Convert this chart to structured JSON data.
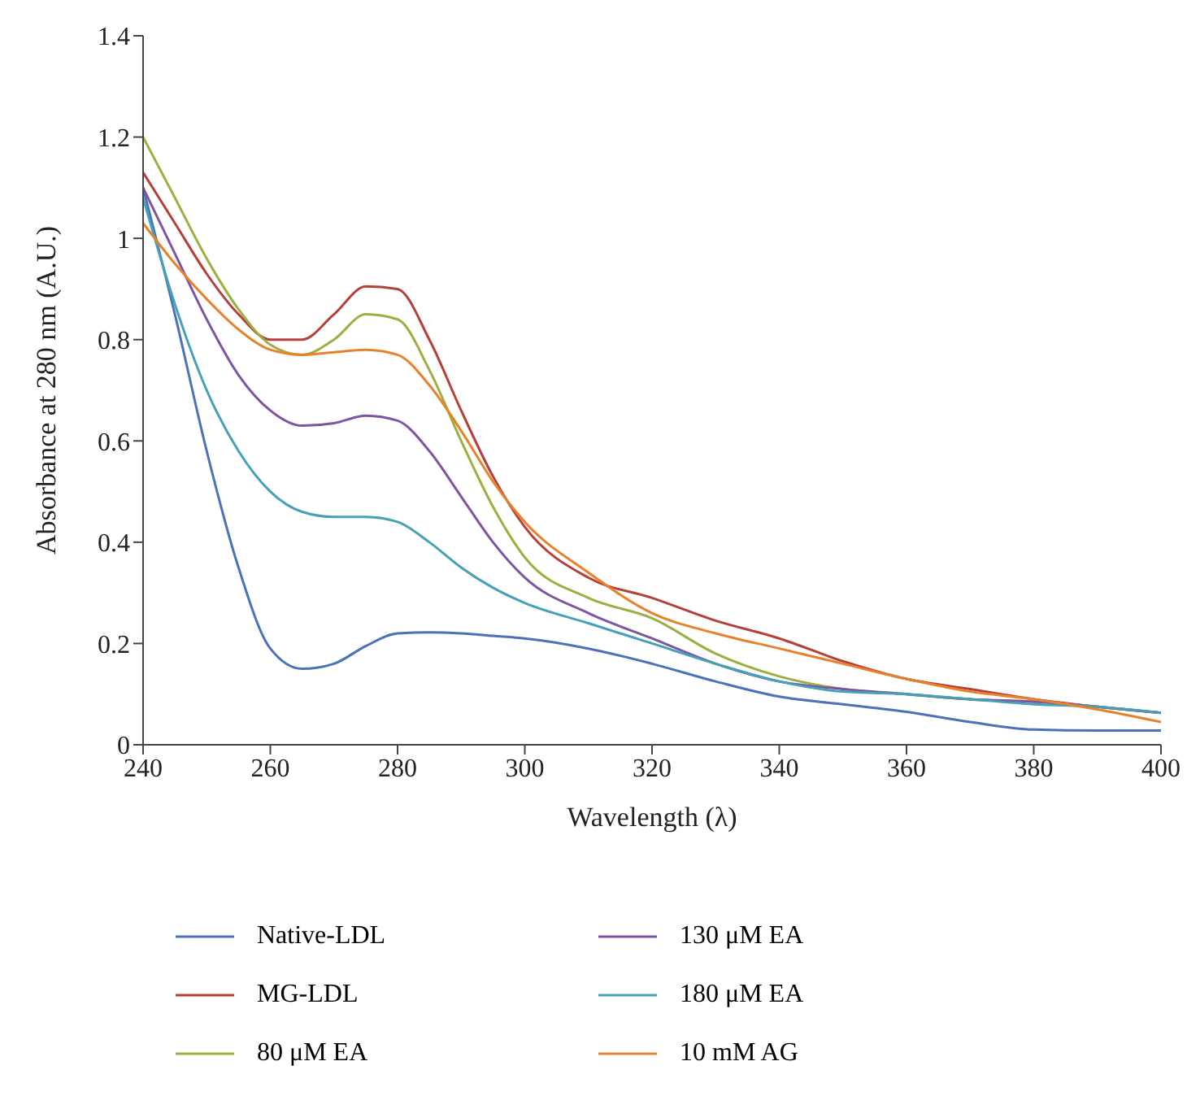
{
  "chart_data": {
    "type": "line",
    "xlabel": "Wavelength (λ)",
    "ylabel": "Absorbance at 280 nm (A.U.)",
    "x": [
      240,
      245,
      250,
      255,
      260,
      265,
      270,
      275,
      280,
      285,
      290,
      295,
      300,
      310,
      320,
      330,
      340,
      350,
      360,
      370,
      380,
      390,
      400
    ],
    "xlim": [
      240,
      400
    ],
    "xticks": [
      240,
      260,
      280,
      300,
      320,
      340,
      360,
      380,
      400
    ],
    "ylim": [
      0,
      1.4
    ],
    "yticks": [
      0,
      0.2,
      0.4,
      0.6,
      0.8,
      1,
      1.2,
      1.4
    ],
    "grid": false,
    "legend": "bottom",
    "marker": "none",
    "line_style": "solid",
    "series": [
      {
        "name": "Native-LDL",
        "color": "#4a72b8",
        "values": [
          1.1,
          0.85,
          0.58,
          0.35,
          0.19,
          0.15,
          0.16,
          0.195,
          0.22,
          0.222,
          0.22,
          0.215,
          0.21,
          0.19,
          0.16,
          0.125,
          0.095,
          0.08,
          0.065,
          0.045,
          0.03,
          0.028,
          0.028
        ]
      },
      {
        "name": "MG-LDL",
        "color": "#b5403a",
        "values": [
          1.13,
          1.03,
          0.93,
          0.85,
          0.8,
          0.8,
          0.85,
          0.905,
          0.9,
          0.8,
          0.66,
          0.53,
          0.43,
          0.33,
          0.29,
          0.245,
          0.21,
          0.165,
          0.13,
          0.11,
          0.09,
          0.075,
          0.063
        ]
      },
      {
        "name": "80 μM EA",
        "color": "#9bb040",
        "values": [
          1.2,
          1.08,
          0.96,
          0.86,
          0.79,
          0.77,
          0.8,
          0.85,
          0.84,
          0.74,
          0.6,
          0.47,
          0.37,
          0.29,
          0.25,
          0.18,
          0.135,
          0.11,
          0.1,
          0.09,
          0.085,
          0.075,
          0.063
        ]
      },
      {
        "name": "130 μM EA",
        "color": "#7d55a0",
        "values": [
          1.1,
          0.97,
          0.84,
          0.73,
          0.66,
          0.63,
          0.635,
          0.65,
          0.64,
          0.58,
          0.49,
          0.4,
          0.33,
          0.26,
          0.21,
          0.16,
          0.125,
          0.11,
          0.1,
          0.09,
          0.085,
          0.075,
          0.063
        ]
      },
      {
        "name": "180 μM EA",
        "color": "#45a0b8",
        "values": [
          1.08,
          0.87,
          0.7,
          0.58,
          0.5,
          0.46,
          0.45,
          0.45,
          0.44,
          0.4,
          0.35,
          0.31,
          0.28,
          0.24,
          0.2,
          0.16,
          0.125,
          0.105,
          0.1,
          0.09,
          0.08,
          0.075,
          0.063
        ]
      },
      {
        "name": "10 mM AG",
        "color": "#e8822a",
        "values": [
          1.03,
          0.95,
          0.88,
          0.82,
          0.78,
          0.77,
          0.775,
          0.78,
          0.77,
          0.71,
          0.62,
          0.52,
          0.44,
          0.34,
          0.26,
          0.22,
          0.19,
          0.16,
          0.13,
          0.105,
          0.09,
          0.07,
          0.045
        ]
      }
    ]
  }
}
